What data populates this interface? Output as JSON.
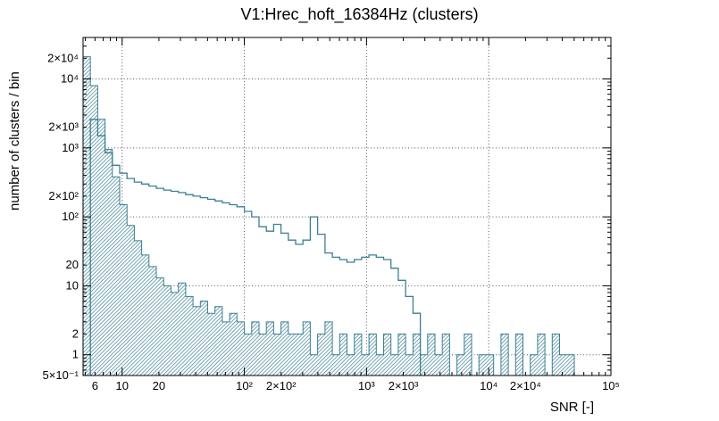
{
  "chart_data": {
    "type": "line",
    "subtype": "step-histogram-loglog",
    "title": "V1:Hrec_hoft_16384Hz (clusters)",
    "xlabel": "SNR [-]",
    "ylabel": "number of clusters / bin",
    "xscale": "log",
    "yscale": "log",
    "xlim": [
      4.79,
      100000
    ],
    "ylim": [
      0.5,
      40000
    ],
    "grid": "dotted at decade lines, both axes",
    "legend": "none",
    "colors": {
      "hist": "#3c7f93",
      "grid": "#555555",
      "axis": "#000000",
      "background": "#ffffff"
    },
    "bins": {
      "log10_min": 0.68,
      "log10_step": 0.06,
      "n": 72
    },
    "series": [
      {
        "name": "filled-hatched-histogram",
        "style": "filled-hatch-step",
        "values": [
          21000,
          8000,
          2600,
          950,
          380,
          150,
          75,
          45,
          28,
          19,
          13,
          10,
          8,
          11,
          7,
          5,
          6,
          4,
          5,
          3,
          4,
          3,
          2,
          3,
          2,
          3,
          2,
          3,
          2,
          2,
          3,
          1,
          2,
          3,
          1,
          2,
          1,
          2,
          1,
          2,
          1,
          2,
          1,
          2,
          1,
          2,
          1,
          2,
          1,
          2,
          0,
          1,
          2,
          0,
          1,
          1,
          0,
          2,
          0,
          2,
          0,
          1,
          2,
          0,
          2,
          1,
          1,
          0,
          0,
          0,
          0,
          0
        ]
      },
      {
        "name": "outline-step-histogram",
        "style": "step-line",
        "values": [
          0,
          2600,
          1500,
          850,
          560,
          430,
          360,
          320,
          300,
          280,
          260,
          245,
          235,
          225,
          210,
          200,
          190,
          180,
          170,
          160,
          150,
          140,
          120,
          100,
          72,
          62,
          78,
          58,
          46,
          40,
          46,
          100,
          56,
          30,
          26,
          24,
          22,
          24,
          26,
          28,
          26,
          24,
          18,
          12,
          7,
          4,
          0,
          0,
          0,
          0,
          0,
          0,
          0,
          0,
          0,
          0,
          0,
          0,
          0,
          0,
          0,
          0,
          0,
          0,
          0,
          0,
          0,
          0,
          0,
          0,
          0,
          0
        ]
      }
    ],
    "x_ticks": [
      {
        "v": 6,
        "label": "6"
      },
      {
        "v": 10,
        "label": "10"
      },
      {
        "v": 20,
        "label": "20"
      },
      {
        "v": 100,
        "label": "10²"
      },
      {
        "v": 200,
        "label": "2×10²"
      },
      {
        "v": 1000,
        "label": "10³"
      },
      {
        "v": 2000,
        "label": "2×10³"
      },
      {
        "v": 10000,
        "label": "10⁴"
      },
      {
        "v": 20000,
        "label": "2×10⁴"
      },
      {
        "v": 100000,
        "label": "10⁵"
      }
    ],
    "y_ticks": [
      {
        "v": 0.5,
        "label": "5×10⁻¹"
      },
      {
        "v": 1,
        "label": "1"
      },
      {
        "v": 2,
        "label": "2"
      },
      {
        "v": 10,
        "label": "10"
      },
      {
        "v": 20,
        "label": "20"
      },
      {
        "v": 100,
        "label": "10²"
      },
      {
        "v": 200,
        "label": "2×10²"
      },
      {
        "v": 1000,
        "label": "10³"
      },
      {
        "v": 2000,
        "label": "2×10³"
      },
      {
        "v": 10000,
        "label": "10⁴"
      },
      {
        "v": 20000,
        "label": "2×10⁴"
      }
    ],
    "x_grid_decades": [
      10,
      100,
      1000,
      10000
    ],
    "y_grid_decades": [
      1,
      10,
      100,
      1000,
      10000
    ]
  }
}
